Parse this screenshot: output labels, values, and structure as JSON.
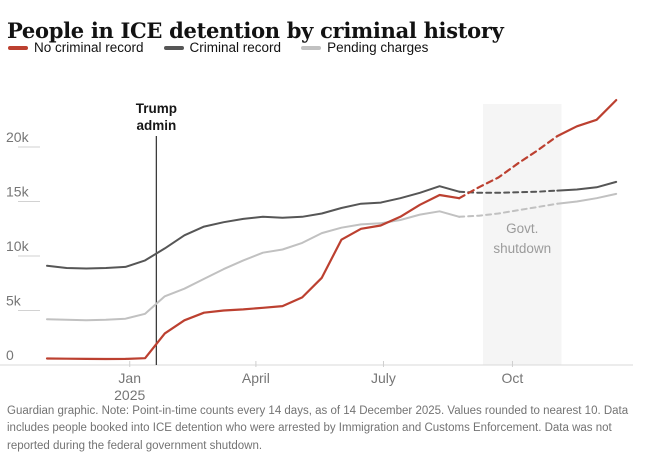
{
  "header": {
    "title": "People in ICE detention by criminal history"
  },
  "legend": [
    {
      "label": "No criminal record",
      "color": "#bc4030"
    },
    {
      "label": "Criminal record",
      "color": "#565656"
    },
    {
      "label": "Pending charges",
      "color": "#c1c1c1"
    }
  ],
  "annotations": {
    "trump_admin": {
      "line1": "Trump",
      "line2": "admin",
      "date": "2025-01-20"
    },
    "govt_shutdown": {
      "line1": "Govt.",
      "line2": "shutdown",
      "band_start": "2025-09-10",
      "band_end": "2025-11-05"
    }
  },
  "footer": {
    "note": "Guardian graphic. Note: Point-in-time counts every 14 days, as of 14 December 2025. Values rounded to nearest 10. Data includes people booked into ICE detention who were arrested by Immigration and Customs Enforcement. Data was not reported during the federal government shutdown."
  },
  "chart_data": {
    "type": "line",
    "title": "People in ICE detention by criminal history",
    "x": [
      "2024-11-03",
      "2024-11-17",
      "2024-12-01",
      "2024-12-15",
      "2024-12-29",
      "2025-01-12",
      "2025-01-26",
      "2025-02-09",
      "2025-02-23",
      "2025-03-09",
      "2025-03-23",
      "2025-04-06",
      "2025-04-20",
      "2025-05-04",
      "2025-05-18",
      "2025-06-01",
      "2025-06-15",
      "2025-06-29",
      "2025-07-13",
      "2025-07-27",
      "2025-08-10",
      "2025-08-24",
      "2025-09-07",
      "2025-09-21",
      "2025-10-05",
      "2025-10-19",
      "2025-11-02",
      "2025-11-16",
      "2025-11-30",
      "2025-12-14"
    ],
    "series": [
      {
        "name": "No criminal record",
        "color": "#bc4030",
        "values": [
          600,
          580,
          560,
          550,
          560,
          620,
          2900,
          4100,
          4800,
          5000,
          5100,
          5250,
          5400,
          6200,
          8000,
          11500,
          12500,
          12800,
          13600,
          14700,
          15600,
          15300,
          16300,
          17200,
          18500,
          19700,
          21000,
          21900,
          22500,
          24300
        ]
      },
      {
        "name": "Criminal record",
        "color": "#565656",
        "values": [
          9100,
          8900,
          8850,
          8900,
          9000,
          9600,
          10700,
          11900,
          12700,
          13100,
          13400,
          13600,
          13500,
          13600,
          13900,
          14400,
          14800,
          14900,
          15300,
          15800,
          16400,
          15900,
          15800,
          15800,
          15850,
          15900,
          16000,
          16100,
          16300,
          16800
        ]
      },
      {
        "name": "Pending charges",
        "color": "#c1c1c1",
        "values": [
          4200,
          4150,
          4100,
          4150,
          4250,
          4700,
          6300,
          7000,
          7900,
          8800,
          9600,
          10300,
          10600,
          11200,
          12100,
          12600,
          12900,
          13000,
          13300,
          13800,
          14100,
          13600,
          13700,
          13900,
          14200,
          14500,
          14800,
          15000,
          15300,
          15700
        ]
      }
    ],
    "dashed_range": {
      "start": "2025-08-24",
      "end": "2025-11-02",
      "reason": "data not reported during federal government shutdown"
    },
    "y_ticks": [
      {
        "value": 0,
        "label": "0"
      },
      {
        "value": 5000,
        "label": "5k"
      },
      {
        "value": 10000,
        "label": "10k"
      },
      {
        "value": 15000,
        "label": "15k"
      },
      {
        "value": 20000,
        "label": "20k"
      }
    ],
    "x_ticks": [
      {
        "date": "2025-01-01",
        "label": "Jan",
        "sublabel": "2025"
      },
      {
        "date": "2025-04-01",
        "label": "April"
      },
      {
        "date": "2025-07-01",
        "label": "July"
      },
      {
        "date": "2025-10-01",
        "label": "Oct"
      }
    ],
    "x_domain": [
      "2024-10-29",
      "2025-12-16"
    ],
    "ylim": [
      0,
      24500
    ],
    "xlabel": "",
    "ylabel": "",
    "grid": "y-ticks-only",
    "legend_position": "top"
  }
}
